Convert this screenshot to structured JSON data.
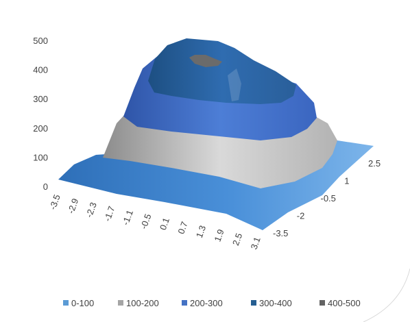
{
  "chart_data": {
    "type": "surface",
    "x_ticks": [
      "-3.5",
      "-2.9",
      "-2.3",
      "-1.7",
      "-1.1",
      "-0.5",
      "0.1",
      "0.7",
      "1.3",
      "1.9",
      "2.5",
      "3.1"
    ],
    "y_ticks": [
      "-3.5",
      "-2",
      "-0.5",
      "1",
      "2.5"
    ],
    "z_ticks": [
      "0",
      "100",
      "200",
      "300",
      "400",
      "500"
    ],
    "zlim": [
      0,
      500
    ],
    "peak_value": 425,
    "legend": [
      {
        "label": "0-100",
        "color": "#5b9bd5"
      },
      {
        "label": "100-200",
        "color": "#a5a5a5"
      },
      {
        "label": "200-300",
        "color": "#4472c4"
      },
      {
        "label": "300-400",
        "color": "#255e91"
      },
      {
        "label": "400-500",
        "color": "#636363"
      }
    ],
    "grid": false,
    "legend_position": "bottom"
  }
}
